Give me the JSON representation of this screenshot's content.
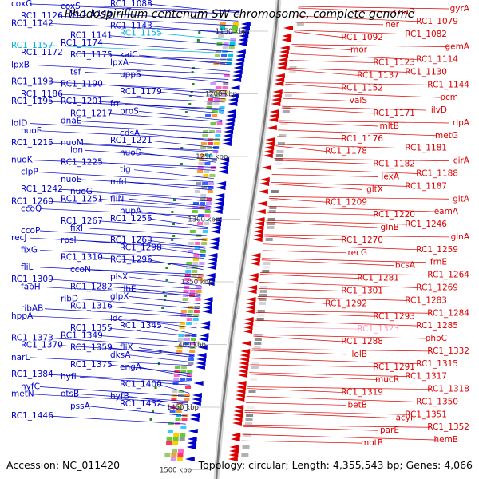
{
  "title": "Rhodospirillum centenum SW chromosome, complete genome",
  "accession_label": "Accession: NC_011420",
  "stats_label": "Topology: circular; Length: 4,355,543 bp; Genes: 4,066",
  "colors": {
    "forward": "#0000cc",
    "reverse": "#dd0000",
    "highlight": "#00b4d8",
    "highlight_reverse": "#ff99bb",
    "backbone": "#888888",
    "tick": "#228822"
  },
  "kbp_ticks": [
    "1150 kbp",
    "1200 kbp",
    "1250 kbp",
    "1300 kbp",
    "1350 kbp",
    "1400 kbp",
    "1450 kbp",
    "1500 kbp"
  ],
  "left_labels": [
    "coxG",
    "coxS",
    "RC1_1088",
    "RC1_1126",
    "RC1_1145",
    "RC1_1143",
    "RC1_1142",
    "RC1_1141",
    "RC1_1155",
    "RC1_1157",
    "RC1_1174",
    "kaiC",
    "RC1_1172",
    "RC1_1175",
    "lpxA",
    "lpxB",
    "tsf",
    "uppS",
    "RC1_1193",
    "RC1_1190",
    "RC1_1179",
    "RC1_1186",
    "RC1_1201",
    "frr",
    "RC1_1195",
    "RC1_1217",
    "proS",
    "lolD",
    "dnaE",
    "cdsA",
    "nuoF",
    "nuoM",
    "RC1_1221",
    "RC1_1215",
    "lon",
    "nuoD",
    "nuoK",
    "RC1_1225",
    "tig",
    "clpP",
    "nuoE",
    "mfd",
    "RC1_1242",
    "nuoG",
    "fliN",
    "RC1_1260",
    "RC1_1251",
    "hupA",
    "ccoQ",
    "RC1_1267",
    "RC1_1255",
    "ccoP",
    "fixI",
    "RC1_1263",
    "recJ",
    "rpsI",
    "RC1_1298",
    "fixG",
    "RC1_1310",
    "RC1_1296",
    "fliL",
    "ccoN",
    "plsX",
    "RC1_1309",
    "RC1_1282",
    "ribE",
    "fabH",
    "ribD",
    "glpX",
    "ribAB",
    "RC1_1316",
    "ldc",
    "hppA",
    "RC1_1355",
    "RC1_1345",
    "RC1_1373",
    "RC1_1349",
    "fliX",
    "RC1_1370",
    "RC1_1359",
    "dksA",
    "narL",
    "RC1_1375",
    "engA",
    "RC1_1384",
    "hyfI",
    "RC1_1400",
    "hyfC",
    "otsB",
    "hyfB",
    "metN",
    "pssA",
    "RC1_1432",
    "RC1_1446"
  ],
  "right_labels": [
    "gyrA",
    "coaD",
    "RC1_1079",
    "ner",
    "RC1_1082",
    "RC1_1092",
    "gemA",
    "mor",
    "RC1_1114",
    "RC1_1123",
    "RC1_1130",
    "RC1_1137",
    "RC1_1144",
    "RC1_1152",
    "pcm",
    "valS",
    "ilvD",
    "RC1_1171",
    "rlpA",
    "mltB",
    "metG",
    "RC1_1176",
    "RC1_1181",
    "RC1_1178",
    "cirA",
    "RC1_1182",
    "RC1_1188",
    "lexA",
    "RC1_1187",
    "gltX",
    "gltA",
    "RC1_1209",
    "eamA",
    "RC1_1220",
    "RC1_1246",
    "glnB",
    "glnA",
    "RC1_1270",
    "RC1_1259",
    "recG",
    "frnE",
    "bcsA",
    "RC1_1264",
    "RC1_1281",
    "RC1_1269",
    "RC1_1301",
    "RC1_1283",
    "RC1_1292",
    "RC1_1284",
    "RC1_1293",
    "RC1_1285",
    "RC1_1323",
    "phbC",
    "RC1_1288",
    "RC1_1332",
    "lolB",
    "RC1_1315",
    "RC1_1291",
    "RC1_1317",
    "mucR",
    "RC1_1318",
    "RC1_1319",
    "RC1_1350",
    "betB",
    "RC1_1351",
    "acylI",
    "RC1_1352",
    "parE",
    "hemB",
    "motB"
  ]
}
